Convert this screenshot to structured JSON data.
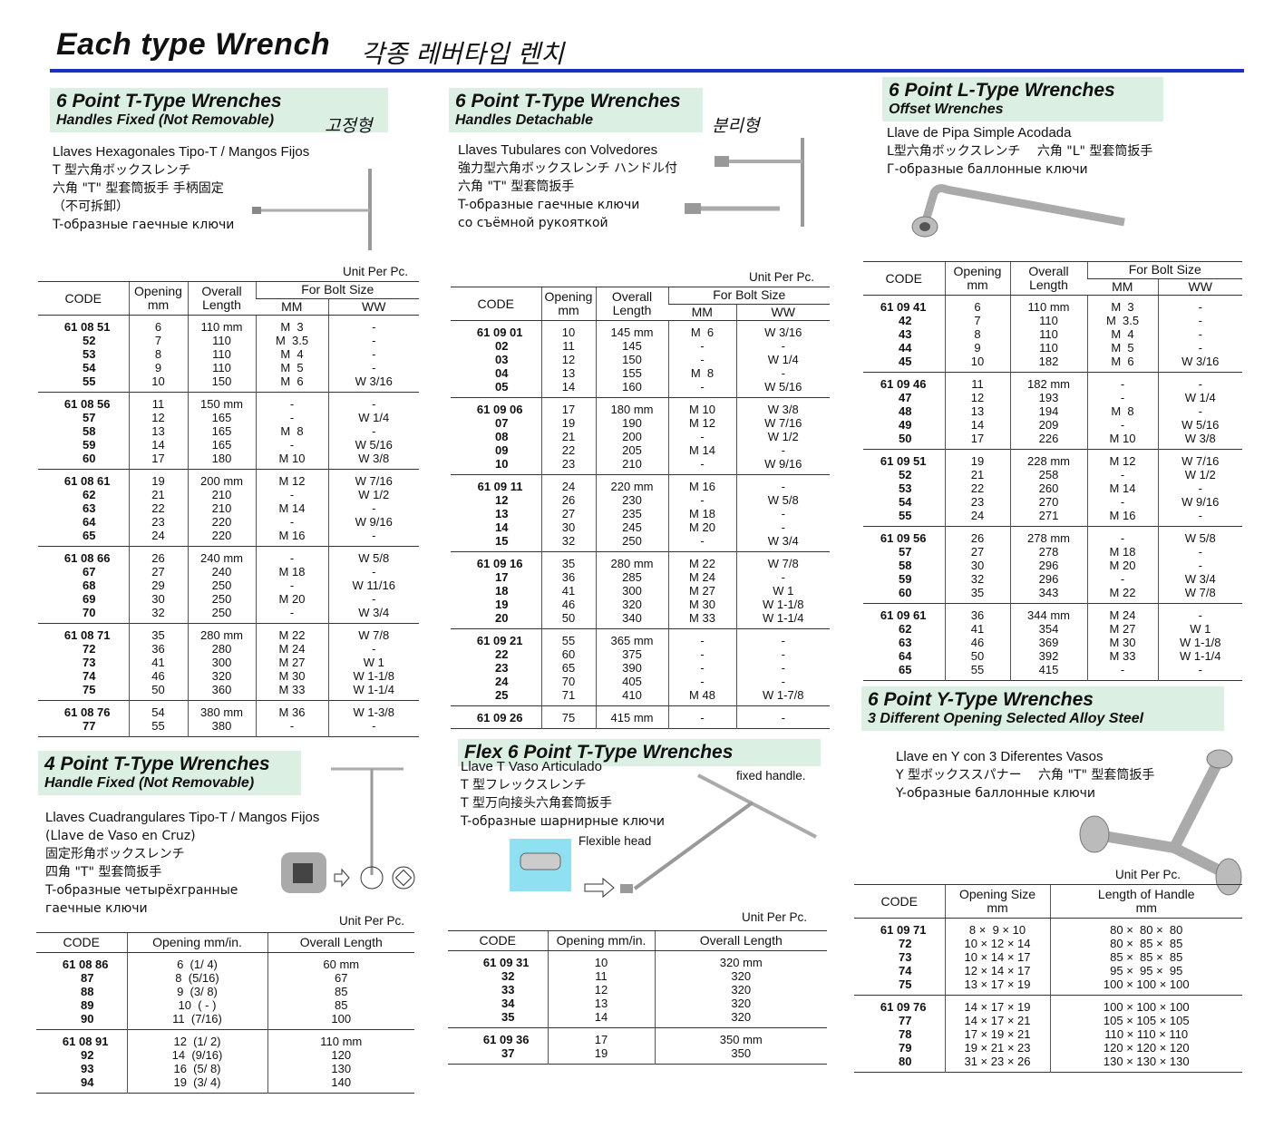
{
  "header": {
    "title": "Each type Wrench",
    "subtitle": "각종 레버타입 렌치"
  },
  "sections": [
    {
      "title": "6 Point T-Type Wrenches",
      "subtitle": "Handles Fixed (Not Removable)",
      "korean": "고정형",
      "description": [
        "Llaves Hexagonales Tipo-T / Mangos Fijos",
        "T 型六角ボックスレンチ",
        "六角 \"T\" 型套筒扳手 手柄固定",
        "（不可拆卸）",
        "T-образные гаечные ключи"
      ],
      "unit": "Unit Per Pc.",
      "table": {
        "headers": [
          [
            "CODE"
          ],
          [
            "Opening",
            "mm"
          ],
          [
            "Overall",
            "Length"
          ]
        ],
        "group_header": "For Bolt Size",
        "sub_headers": [
          "MM",
          "WW"
        ],
        "groups": [
          [
            [
              "61 08 51",
              "6",
              "110 mm",
              "M  3",
              "-"
            ],
            [
              "52",
              "7",
              "110",
              "M  3.5",
              "-"
            ],
            [
              "53",
              "8",
              "110",
              "M  4",
              "-"
            ],
            [
              "54",
              "9",
              "110",
              "M  5",
              "-"
            ],
            [
              "55",
              "10",
              "150",
              "M  6",
              "W 3/16"
            ]
          ],
          [
            [
              "61 08 56",
              "11",
              "150 mm",
              "-",
              "-"
            ],
            [
              "57",
              "12",
              "165",
              "-",
              "W 1/4"
            ],
            [
              "58",
              "13",
              "165",
              "M  8",
              "-"
            ],
            [
              "59",
              "14",
              "165",
              "-",
              "W 5/16"
            ],
            [
              "60",
              "17",
              "180",
              "M 10",
              "W 3/8"
            ]
          ],
          [
            [
              "61 08 61",
              "19",
              "200 mm",
              "M 12",
              "W 7/16"
            ],
            [
              "62",
              "21",
              "210",
              "-",
              "W 1/2"
            ],
            [
              "63",
              "22",
              "210",
              "M 14",
              "-"
            ],
            [
              "64",
              "23",
              "220",
              "-",
              "W 9/16"
            ],
            [
              "65",
              "24",
              "220",
              "M 16",
              "-"
            ]
          ],
          [
            [
              "61 08 66",
              "26",
              "240 mm",
              "-",
              "W 5/8"
            ],
            [
              "67",
              "27",
              "240",
              "M 18",
              "-"
            ],
            [
              "68",
              "29",
              "250",
              "-",
              "W 11/16"
            ],
            [
              "69",
              "30",
              "250",
              "M 20",
              "-"
            ],
            [
              "70",
              "32",
              "250",
              "-",
              "W 3/4"
            ]
          ],
          [
            [
              "61 08 71",
              "35",
              "280 mm",
              "M 22",
              "W 7/8"
            ],
            [
              "72",
              "36",
              "280",
              "M 24",
              "-"
            ],
            [
              "73",
              "41",
              "300",
              "M 27",
              "W 1"
            ],
            [
              "74",
              "46",
              "320",
              "M 30",
              "W 1-1/8"
            ],
            [
              "75",
              "50",
              "360",
              "M 33",
              "W 1-1/4"
            ]
          ],
          [
            [
              "61 08 76",
              "54",
              "380 mm",
              "M 36",
              "W 1-3/8"
            ],
            [
              "77",
              "55",
              "380",
              "-",
              "-"
            ]
          ]
        ]
      }
    },
    {
      "title": "6 Point T-Type Wrenches",
      "subtitle": "Handles Detachable",
      "korean": "분리형",
      "description": [
        "Llaves Tubulares con Volvedores",
        "強力型六角ボックスレンチ ハンドル付",
        "六角 \"T\" 型套筒扳手",
        "T-образные гаечные ключи",
        "со съёмной рукояткой"
      ],
      "unit": "Unit Per Pc.",
      "table": {
        "headers": [
          [
            "CODE"
          ],
          [
            "Opening",
            "mm"
          ],
          [
            "Overall",
            "Length"
          ]
        ],
        "group_header": "For Bolt Size",
        "sub_headers": [
          "MM",
          "WW"
        ],
        "groups": [
          [
            [
              "61 09 01",
              "10",
              "145 mm",
              "M  6",
              "W 3/16"
            ],
            [
              "02",
              "11",
              "145",
              "-",
              "-"
            ],
            [
              "03",
              "12",
              "150",
              "-",
              "W 1/4"
            ],
            [
              "04",
              "13",
              "155",
              "M  8",
              "-"
            ],
            [
              "05",
              "14",
              "160",
              "-",
              "W 5/16"
            ]
          ],
          [
            [
              "61 09 06",
              "17",
              "180 mm",
              "M 10",
              "W 3/8"
            ],
            [
              "07",
              "19",
              "190",
              "M 12",
              "W 7/16"
            ],
            [
              "08",
              "21",
              "200",
              "-",
              "W 1/2"
            ],
            [
              "09",
              "22",
              "205",
              "M 14",
              "-"
            ],
            [
              "10",
              "23",
              "210",
              "-",
              "W 9/16"
            ]
          ],
          [
            [
              "61 09 11",
              "24",
              "220 mm",
              "M 16",
              "-"
            ],
            [
              "12",
              "26",
              "230",
              "-",
              "W 5/8"
            ],
            [
              "13",
              "27",
              "235",
              "M 18",
              "-"
            ],
            [
              "14",
              "30",
              "245",
              "M 20",
              "-"
            ],
            [
              "15",
              "32",
              "250",
              "-",
              "W 3/4"
            ]
          ],
          [
            [
              "61 09 16",
              "35",
              "280 mm",
              "M 22",
              "W 7/8"
            ],
            [
              "17",
              "36",
              "285",
              "M 24",
              "-"
            ],
            [
              "18",
              "41",
              "300",
              "M 27",
              "W 1"
            ],
            [
              "19",
              "46",
              "320",
              "M 30",
              "W 1-1/8"
            ],
            [
              "20",
              "50",
              "340",
              "M 33",
              "W 1-1/4"
            ]
          ],
          [
            [
              "61 09 21",
              "55",
              "365 mm",
              "-",
              "-"
            ],
            [
              "22",
              "60",
              "375",
              "-",
              "-"
            ],
            [
              "23",
              "65",
              "390",
              "-",
              "-"
            ],
            [
              "24",
              "70",
              "405",
              "-",
              "-"
            ],
            [
              "25",
              "71",
              "410",
              "M 48",
              "W 1-7/8"
            ]
          ],
          [
            [
              "61 09 26",
              "75",
              "415 mm",
              "-",
              "-"
            ]
          ]
        ]
      }
    },
    {
      "title": "6 Point L-Type Wrenches",
      "subtitle": "Offset Wrenches",
      "description": [
        "Llave de Pipa Simple Acodada",
        "L型六角ボックスレンチ　 六角 \"L\" 型套筒扳手",
        "Г-образные баллонные ключи"
      ],
      "table": {
        "headers": [
          [
            "CODE"
          ],
          [
            "Opening",
            "mm"
          ],
          [
            "Overall",
            "Length"
          ]
        ],
        "group_header": "For Bolt Size",
        "sub_headers": [
          "MM",
          "WW"
        ],
        "groups": [
          [
            [
              "61 09 41",
              "6",
              "110 mm",
              "M  3",
              "-"
            ],
            [
              "42",
              "7",
              "110",
              "M  3.5",
              "-"
            ],
            [
              "43",
              "8",
              "110",
              "M  4",
              "-"
            ],
            [
              "44",
              "9",
              "110",
              "M  5",
              "-"
            ],
            [
              "45",
              "10",
              "182",
              "M  6",
              "W 3/16"
            ]
          ],
          [
            [
              "61 09 46",
              "11",
              "182 mm",
              "-",
              "-"
            ],
            [
              "47",
              "12",
              "193",
              "-",
              "W 1/4"
            ],
            [
              "48",
              "13",
              "194",
              "M  8",
              "-"
            ],
            [
              "49",
              "14",
              "209",
              "-",
              "W 5/16"
            ],
            [
              "50",
              "17",
              "226",
              "M 10",
              "W 3/8"
            ]
          ],
          [
            [
              "61 09 51",
              "19",
              "228 mm",
              "M 12",
              "W 7/16"
            ],
            [
              "52",
              "21",
              "258",
              "-",
              "W 1/2"
            ],
            [
              "53",
              "22",
              "260",
              "M 14",
              "-"
            ],
            [
              "54",
              "23",
              "270",
              "-",
              "W 9/16"
            ],
            [
              "55",
              "24",
              "271",
              "M 16",
              "-"
            ]
          ],
          [
            [
              "61 09 56",
              "26",
              "278 mm",
              "-",
              "W 5/8"
            ],
            [
              "57",
              "27",
              "278",
              "M 18",
              "-"
            ],
            [
              "58",
              "30",
              "296",
              "M 20",
              "-"
            ],
            [
              "59",
              "32",
              "296",
              "-",
              "W 3/4"
            ],
            [
              "60",
              "35",
              "343",
              "M 22",
              "W 7/8"
            ]
          ],
          [
            [
              "61 09 61",
              "36",
              "344 mm",
              "M 24",
              "-"
            ],
            [
              "62",
              "41",
              "354",
              "M 27",
              "W 1"
            ],
            [
              "63",
              "46",
              "369",
              "M 30",
              "W 1-1/8"
            ],
            [
              "64",
              "50",
              "392",
              "M 33",
              "W 1-1/4"
            ],
            [
              "65",
              "55",
              "415",
              "-",
              "-"
            ]
          ]
        ]
      }
    },
    {
      "title": "4 Point T-Type Wrenches",
      "subtitle": "Handle Fixed (Not Removable)",
      "description": [
        "Llaves Cuadrangulares Tipo-T / Mangos Fijos",
        "(Llave de Vaso en Cruz)",
        "固定形角ボックスレンチ",
        "四角 \"T\" 型套筒扳手",
        "T-образные четырёхгранные",
        "гаечные ключи"
      ],
      "unit": "Unit Per Pc.",
      "table": {
        "headers": [
          [
            "CODE"
          ],
          [
            "Opening mm/in."
          ],
          [
            "Overall Length"
          ]
        ],
        "groups": [
          [
            [
              "61 08 86",
              "6  (1/ 4)",
              "60 mm"
            ],
            [
              "87",
              "8  (5/16)",
              "67"
            ],
            [
              "88",
              "9  (3/ 8)",
              "85"
            ],
            [
              "89",
              "10  ( - )",
              "85"
            ],
            [
              "90",
              "11  (7/16)",
              "100"
            ]
          ],
          [
            [
              "61 08 91",
              "12  (1/ 2)",
              "110 mm"
            ],
            [
              "92",
              "14  (9/16)",
              "120"
            ],
            [
              "93",
              "16  (5/ 8)",
              "130"
            ],
            [
              "94",
              "19  (3/ 4)",
              "140"
            ]
          ]
        ]
      }
    },
    {
      "title": "Flex 6 Point T-Type Wrenches",
      "description": [
        "Llave T Vaso Articulado",
        "T 型フレックスレンチ",
        "T 型万向接头六角套筒扳手",
        "T-образные шарнирные ключи"
      ],
      "notes": [
        "fixed handle.",
        "Flexible head"
      ],
      "unit": "Unit Per Pc.",
      "table": {
        "headers": [
          [
            "CODE"
          ],
          [
            "Opening mm/in."
          ],
          [
            "Overall Length"
          ]
        ],
        "groups": [
          [
            [
              "61 09 31",
              "10",
              "320 mm"
            ],
            [
              "32",
              "11",
              "320"
            ],
            [
              "33",
              "12",
              "320"
            ],
            [
              "34",
              "13",
              "320"
            ],
            [
              "35",
              "14",
              "320"
            ]
          ],
          [
            [
              "61 09 36",
              "17",
              "350 mm"
            ],
            [
              "37",
              "19",
              "350"
            ]
          ]
        ]
      }
    },
    {
      "title": "6 Point Y-Type Wrenches",
      "subtitle": "3 Different Opening Selected Alloy Steel",
      "description": [
        "Llave en Y con 3 Diferentes Vasos",
        "Y 型ボックススパナー　 六角 \"T\" 型套筒扳手",
        "Y-образные баллонные ключи"
      ],
      "unit": "Unit Per Pc.",
      "table": {
        "headers": [
          [
            "CODE"
          ],
          [
            "Opening Size",
            "mm"
          ],
          [
            "Length of Handle",
            "mm"
          ]
        ],
        "groups": [
          [
            [
              "61 09 71",
              "8 ×  9 × 10",
              "80 ×  80 ×  80"
            ],
            [
              "72",
              "10 × 12 × 14",
              "80 ×  85 ×  85"
            ],
            [
              "73",
              "10 × 14 × 17",
              "85 ×  85 ×  85"
            ],
            [
              "74",
              "12 × 14 × 17",
              "95 ×  95 ×  95"
            ],
            [
              "75",
              "13 × 17 × 19",
              "100 × 100 × 100"
            ]
          ],
          [
            [
              "61 09 76",
              "14 × 17 × 19",
              "100 × 100 × 100"
            ],
            [
              "77",
              "14 × 17 × 21",
              "105 × 105 × 105"
            ],
            [
              "78",
              "17 × 19 × 21",
              "110 × 110 × 110"
            ],
            [
              "79",
              "19 × 21 × 23",
              "120 × 120 × 120"
            ],
            [
              "80",
              "31 × 23 × 26",
              "130 × 130 × 130"
            ]
          ]
        ]
      }
    }
  ]
}
